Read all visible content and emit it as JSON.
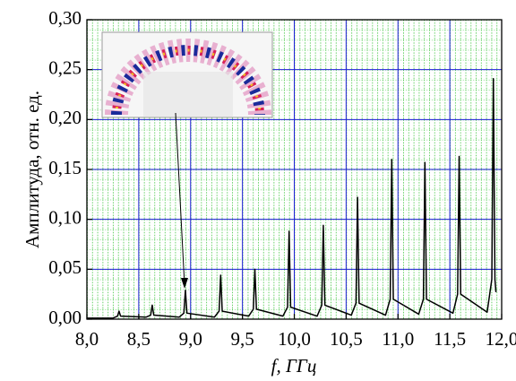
{
  "chart_data": {
    "type": "line",
    "xlabel": "f, ГГц",
    "ylabel": "Амплитуда, отн. ед.",
    "x": [
      8.0,
      8.25,
      8.295,
      8.31,
      8.325,
      8.57,
      8.615,
      8.63,
      8.645,
      8.89,
      8.935,
      8.95,
      8.965,
      9.23,
      9.275,
      9.29,
      9.305,
      9.56,
      9.605,
      9.62,
      9.635,
      9.89,
      9.935,
      9.95,
      9.965,
      10.22,
      10.265,
      10.28,
      10.295,
      10.55,
      10.595,
      10.61,
      10.625,
      10.88,
      10.925,
      10.94,
      10.955,
      11.2,
      11.245,
      11.26,
      11.275,
      11.53,
      11.575,
      11.59,
      11.605,
      11.86,
      11.905,
      11.92,
      11.935,
      11.945
    ],
    "values": [
      0.001,
      0.001,
      0.003,
      0.008,
      0.003,
      0.002,
      0.004,
      0.014,
      0.004,
      0.002,
      0.006,
      0.029,
      0.006,
      0.002,
      0.008,
      0.044,
      0.008,
      0.003,
      0.01,
      0.05,
      0.01,
      0.003,
      0.012,
      0.088,
      0.012,
      0.003,
      0.014,
      0.094,
      0.014,
      0.004,
      0.016,
      0.122,
      0.016,
      0.004,
      0.02,
      0.16,
      0.02,
      0.005,
      0.02,
      0.157,
      0.02,
      0.006,
      0.025,
      0.163,
      0.025,
      0.007,
      0.04,
      0.241,
      0.04,
      0.027
    ],
    "color": "#000000",
    "xlim": [
      8.0,
      12.0
    ],
    "xticks": [
      {
        "value": 8.0,
        "label": "8,0"
      },
      {
        "value": 8.5,
        "label": "8,5"
      },
      {
        "value": 9.0,
        "label": "9,0"
      },
      {
        "value": 9.5,
        "label": "9,5"
      },
      {
        "value": 10.0,
        "label": "10,0"
      },
      {
        "value": 10.5,
        "label": "10,5"
      },
      {
        "value": 11.0,
        "label": "11,0"
      },
      {
        "value": 11.5,
        "label": "11,5"
      },
      {
        "value": 12.0,
        "label": "12,0"
      }
    ],
    "ylim": [
      0,
      0.3
    ],
    "yticks": [
      {
        "value": 0,
        "label": "0,00"
      },
      {
        "value": 0.05,
        "label": "0,05"
      },
      {
        "value": 0.1,
        "label": "0,10"
      },
      {
        "value": 0.15,
        "label": "0,15"
      },
      {
        "value": 0.2,
        "label": "0,20"
      },
      {
        "value": 0.25,
        "label": "0,25"
      },
      {
        "value": 0.3,
        "label": "0,30"
      }
    ],
    "grid": true
  }
}
